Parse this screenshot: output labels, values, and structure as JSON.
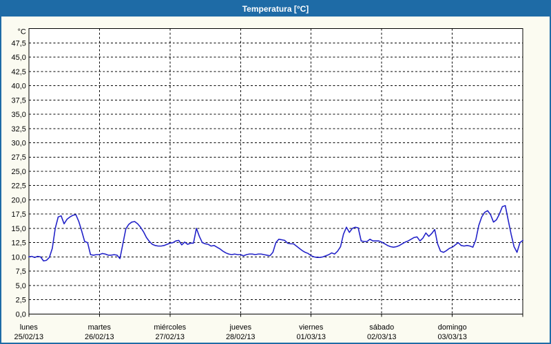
{
  "window": {
    "title": "Temperatura [°C]"
  },
  "colors": {
    "title_bar": "#1e6ba6",
    "panel_border": "#1e6ba6",
    "panel_bg": "#fbfbf1",
    "plot_bg": "#ffffff",
    "grid": "#000000",
    "frame": "#000000",
    "text": "#000000",
    "line": "#2121c8"
  },
  "chart_data": {
    "type": "line",
    "title": "Temperatura [°C]",
    "ylabel": "°C",
    "ylim": [
      0,
      50
    ],
    "y_step": 2.5,
    "grid": "dashed",
    "legend": "none",
    "y_tick_labels": [
      "0,0",
      "2,5",
      "5,0",
      "7,5",
      "10,0",
      "12,5",
      "15,0",
      "17,5",
      "20,0",
      "22,5",
      "25,0",
      "27,5",
      "30,0",
      "32,5",
      "35,0",
      "37,5",
      "40,0",
      "42,5",
      "45,0",
      "47,5"
    ],
    "x_axis": {
      "hours_per_day": 24,
      "days": [
        {
          "label": "lunes",
          "date": "25/02/13"
        },
        {
          "label": "martes",
          "date": "26/02/13"
        },
        {
          "label": "miércoles",
          "date": "27/02/13"
        },
        {
          "label": "jueves",
          "date": "28/02/13"
        },
        {
          "label": "viernes",
          "date": "01/03/13"
        },
        {
          "label": "sábado",
          "date": "02/03/13"
        },
        {
          "label": "domingo",
          "date": "03/03/13"
        }
      ]
    },
    "series": [
      {
        "name": "Temperatura",
        "color": "#2121c8",
        "x_unit": "hours_from_start",
        "values": [
          10.0,
          10.1,
          9.9,
          10.1,
          10.0,
          9.3,
          9.4,
          9.9,
          11.5,
          15.0,
          17.0,
          17.2,
          15.8,
          16.6,
          17.0,
          17.3,
          17.4,
          16.2,
          14.5,
          12.7,
          12.5,
          10.4,
          10.3,
          10.4,
          10.4,
          10.6,
          10.5,
          10.3,
          10.3,
          10.4,
          10.3,
          9.7,
          12.3,
          14.9,
          15.7,
          16.1,
          16.2,
          15.8,
          15.2,
          14.4,
          13.4,
          12.7,
          12.2,
          12.0,
          11.9,
          11.9,
          12.0,
          12.2,
          12.4,
          12.5,
          12.8,
          12.9,
          12.1,
          12.6,
          12.2,
          12.4,
          12.4,
          15.0,
          13.6,
          12.5,
          12.3,
          12.2,
          11.9,
          12.0,
          11.7,
          11.4,
          11.0,
          10.7,
          10.5,
          10.4,
          10.5,
          10.4,
          10.4,
          10.2,
          10.4,
          10.5,
          10.5,
          10.4,
          10.5,
          10.5,
          10.4,
          10.3,
          10.2,
          10.8,
          12.5,
          13.1,
          13.0,
          12.9,
          12.4,
          12.3,
          12.3,
          11.9,
          11.5,
          11.1,
          10.8,
          10.6,
          10.2,
          10.0,
          9.9,
          9.9,
          10.0,
          10.2,
          10.4,
          10.7,
          10.5,
          11.0,
          11.8,
          14.0,
          15.2,
          14.3,
          15.0,
          15.2,
          15.1,
          12.8,
          12.7,
          12.7,
          13.1,
          12.8,
          12.8,
          12.8,
          12.6,
          12.3,
          12.0,
          11.8,
          11.7,
          11.8,
          12.0,
          12.3,
          12.6,
          12.8,
          13.1,
          13.4,
          13.5,
          12.8,
          13.3,
          14.2,
          13.6,
          14.1,
          14.8,
          12.3,
          11.0,
          10.8,
          11.1,
          11.5,
          11.7,
          12.1,
          12.5,
          12.0,
          11.9,
          12.0,
          11.9,
          11.7,
          13.0,
          15.5,
          17.0,
          17.8,
          18.1,
          17.4,
          16.1,
          16.5,
          17.5,
          18.8,
          19.0,
          16.5,
          14.0,
          11.8,
          10.8,
          12.5,
          12.9
        ]
      }
    ]
  }
}
